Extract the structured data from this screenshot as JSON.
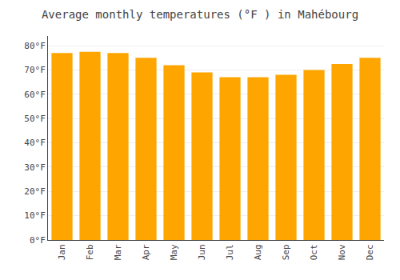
{
  "chart_data": {
    "type": "bar",
    "title": "Average monthly temperatures (°F ) in Mahébourg",
    "categories": [
      "Jan",
      "Feb",
      "Mar",
      "Apr",
      "May",
      "Jun",
      "Jul",
      "Aug",
      "Sep",
      "Oct",
      "Nov",
      "Dec"
    ],
    "values": [
      77,
      77.5,
      77,
      75,
      72,
      69,
      67,
      67,
      68,
      70,
      72.5,
      75
    ],
    "color": "#FFA500",
    "ylim": [
      0,
      84
    ],
    "yticks": [
      {
        "value": 0,
        "label": "0°F"
      },
      {
        "value": 10,
        "label": "10°F"
      },
      {
        "value": 20,
        "label": "20°F"
      },
      {
        "value": 30,
        "label": "30°F"
      },
      {
        "value": 40,
        "label": "40°F"
      },
      {
        "value": 50,
        "label": "50°F"
      },
      {
        "value": 60,
        "label": "60°F"
      },
      {
        "value": 70,
        "label": "70°F"
      },
      {
        "value": 80,
        "label": "80°F"
      }
    ],
    "grid": true
  }
}
